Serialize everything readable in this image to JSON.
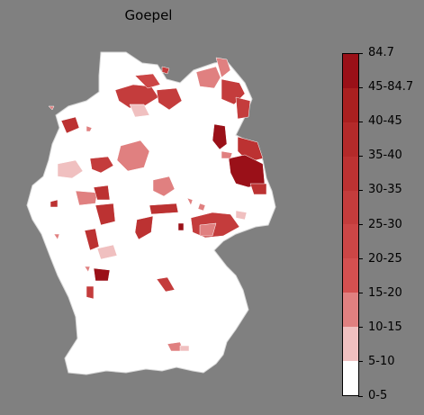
{
  "title": "Goepel",
  "legend": {
    "labels": [
      "0-5",
      "5-10",
      "10-15",
      "15-20",
      "20-25",
      "25-30",
      "30-35",
      "35-40",
      "40-45",
      "45-84.7",
      "84.7"
    ],
    "bands": [
      {
        "range": "0-5",
        "color": "#ffffff"
      },
      {
        "range": "5-10",
        "color": "#f0c0c0"
      },
      {
        "range": "10-15",
        "color": "#e08080"
      },
      {
        "range": "15-20",
        "color": "#d45050"
      },
      {
        "range": "20-25",
        "color": "#cc4646"
      },
      {
        "range": "25-30",
        "color": "#c43c3c"
      },
      {
        "range": "30-35",
        "color": "#bc3232"
      },
      {
        "range": "35-40",
        "color": "#b42a2a"
      },
      {
        "range": "40-45",
        "color": "#aa2020"
      },
      {
        "range": "45-84.7",
        "color": "#9a1018"
      }
    ]
  },
  "colors": {
    "background": "#808080",
    "land": "#ffffff",
    "border": "#d8d8d8"
  }
}
